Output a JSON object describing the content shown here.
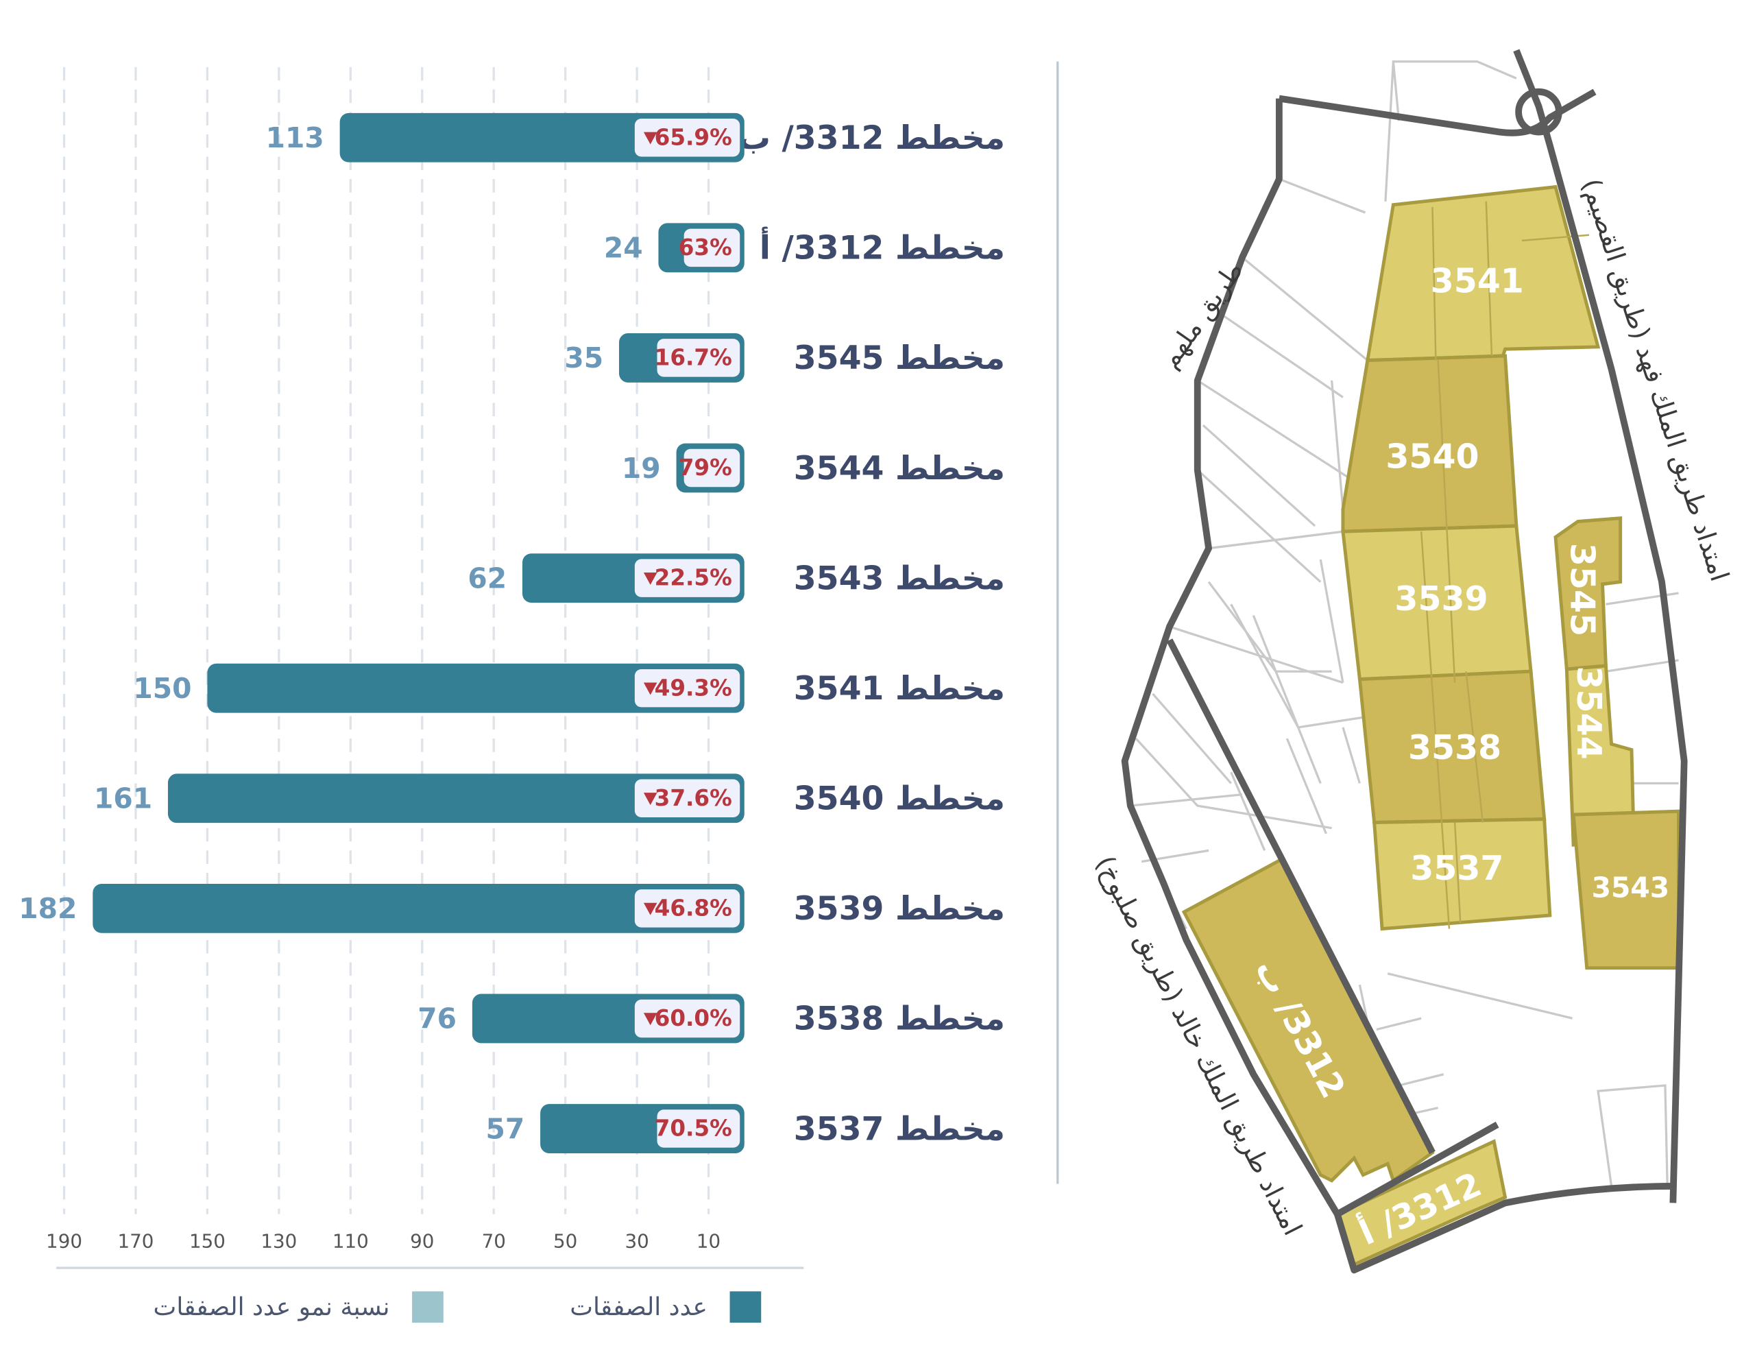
{
  "chart_data": {
    "type": "bar",
    "orientation": "horizontal",
    "categories": [
      "مخطط 3312/ ب",
      "مخطط 3312/ أ",
      "مخطط 3545",
      "مخطط 3544",
      "مخطط 3543",
      "مخطط 3541",
      "مخطط 3540",
      "مخطط 3539",
      "مخطط 3538",
      "مخطط 3537"
    ],
    "series": [
      {
        "name": "عدد الصفقات",
        "color": "#347f94",
        "values": [
          113,
          24,
          35,
          19,
          62,
          150,
          161,
          182,
          76,
          57
        ]
      },
      {
        "name": "نسبة نمو عدد الصفقات",
        "color": "#9cc4cc",
        "values": [
          65.9,
          63,
          16.7,
          79,
          22.5,
          49.3,
          37.6,
          46.8,
          60.0,
          70.5
        ],
        "value_labels": [
          "65.9%",
          "63%",
          "16.7%",
          "79%",
          "22.5%",
          "49.3%",
          "37.6%",
          "46.8%",
          "60.0%",
          "70.5%"
        ],
        "down_arrow": [
          true,
          false,
          false,
          false,
          true,
          true,
          true,
          true,
          true,
          false
        ]
      }
    ],
    "xlim": [
      200,
      0
    ],
    "xticks": [
      190,
      170,
      150,
      130,
      110,
      90,
      70,
      50,
      30,
      10
    ],
    "grid": true
  },
  "map": {
    "parcels": [
      "3541",
      "3540",
      "3539",
      "3538",
      "3537",
      "3545",
      "3544",
      "3543",
      "3312/ ب",
      "3312/ أ"
    ],
    "roads": [
      "طريق ملهم",
      "امتداد طريق الملك فهد (طريق القصيم)",
      "امتداد طريق الملك خالد (طريق صلبوخ)"
    ]
  }
}
